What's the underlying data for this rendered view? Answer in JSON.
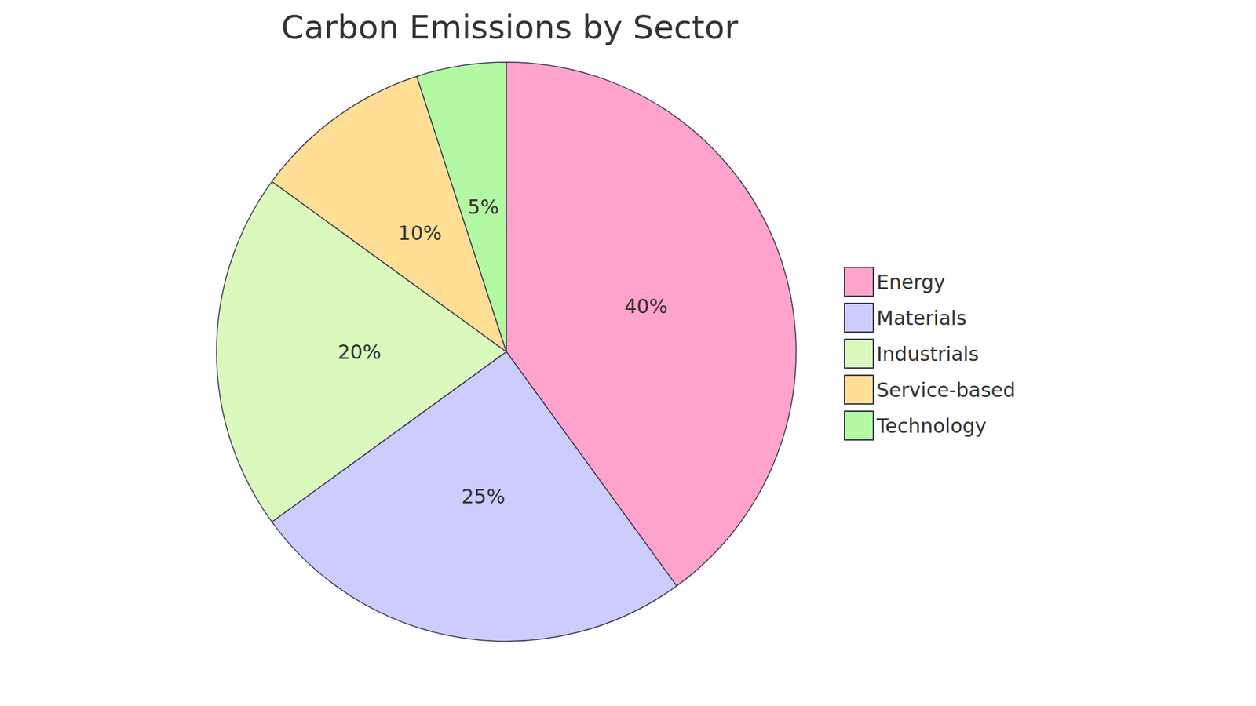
{
  "chart_data": {
    "type": "pie",
    "title": "Carbon Emissions by Sector",
    "categories": [
      "Energy",
      "Materials",
      "Industrials",
      "Service-based",
      "Technology"
    ],
    "values": [
      40,
      25,
      20,
      10,
      5
    ],
    "value_labels": [
      "40%",
      "25%",
      "20%",
      "10%",
      "5%"
    ],
    "colors": [
      "#ffa3cc",
      "#ccccff",
      "#dcf9bd",
      "#ffdf96",
      "#b3f9a3"
    ],
    "data_labels": true,
    "legend": "right"
  }
}
